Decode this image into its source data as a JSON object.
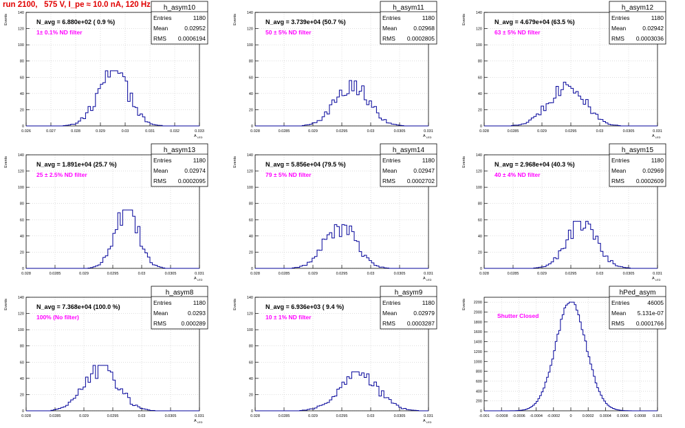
{
  "title": "run 2100,   575 V, I_pe ≈ 10.0 nA, 120 Hz",
  "colors": {
    "title": "#e00000",
    "annotation": "#ff00ff",
    "hist": "#000099",
    "grid": "#c8c8c8"
  },
  "chart_data": [
    {
      "type": "bar",
      "name": "h_asym10",
      "navg": "N_avg = 6.880e+02 ( 0.9 %)",
      "annotation": "1± 0.1% ND filter",
      "stats": {
        "entries": "1180",
        "mean": "0.02952",
        "rms": "0.0006194"
      },
      "ylabel": "Events",
      "xlabel": "A_LED",
      "xlim": [
        0.026,
        0.033
      ],
      "ylim": [
        0,
        140
      ],
      "xticks": [
        0.026,
        0.027,
        0.028,
        0.029,
        0.03,
        0.031,
        0.032,
        0.033
      ],
      "xticklabels": [
        "0.026",
        "0.027",
        "0.028",
        "0.029",
        "0.03",
        "0.031",
        "0.032",
        "0.033"
      ],
      "yticks": [
        0,
        20,
        40,
        60,
        80,
        100,
        120,
        140
      ],
      "mean": 0.02952,
      "rms": 0.0006194,
      "peak": 68,
      "bins": 70
    },
    {
      "type": "bar",
      "name": "h_asym11",
      "navg": "N_avg = 3.739e+04 (50.7 %)",
      "annotation": "50 ± 5% ND filter",
      "stats": {
        "entries": "1180",
        "mean": "0.02968",
        "rms": "0.0002805"
      },
      "ylabel": "Events",
      "xlabel": "A_LED",
      "xlim": [
        0.028,
        0.031
      ],
      "ylim": [
        0,
        140
      ],
      "xticks": [
        0.028,
        0.0285,
        0.029,
        0.0295,
        0.03,
        0.0305,
        0.031
      ],
      "xticklabels": [
        "0.028",
        "0.0285",
        "0.029",
        "0.0295",
        "0.03",
        "0.0305",
        "0.031"
      ],
      "yticks": [
        0,
        20,
        40,
        60,
        80,
        100,
        120,
        140
      ],
      "mean": 0.02968,
      "rms": 0.0002805,
      "peak": 56,
      "bins": 70
    },
    {
      "type": "bar",
      "name": "h_asym12",
      "navg": "N_avg = 4.679e+04 (63.5 %)",
      "annotation": "63 ± 5% ND filter",
      "stats": {
        "entries": "1180",
        "mean": "0.02942",
        "rms": "0.0003036"
      },
      "ylabel": "Events",
      "xlabel": "A_LED",
      "xlim": [
        0.028,
        0.031
      ],
      "ylim": [
        0,
        140
      ],
      "xticks": [
        0.028,
        0.0285,
        0.029,
        0.0295,
        0.03,
        0.0305,
        0.031
      ],
      "xticklabels": [
        "0.028",
        "0.0285",
        "0.029",
        "0.0295",
        "0.03",
        "0.0305",
        "0.031"
      ],
      "yticks": [
        0,
        20,
        40,
        60,
        80,
        100,
        120,
        140
      ],
      "mean": 0.02942,
      "rms": 0.0003036,
      "peak": 54,
      "bins": 70
    },
    {
      "type": "bar",
      "name": "h_asym13",
      "navg": "N_avg = 1.891e+04 (25.7 %)",
      "annotation": "25 ± 2.5% ND filter",
      "stats": {
        "entries": "1180",
        "mean": "0.02974",
        "rms": "0.0002095"
      },
      "ylabel": "Events",
      "xlabel": "A_LED",
      "xlim": [
        0.028,
        0.031
      ],
      "ylim": [
        0,
        140
      ],
      "xticks": [
        0.028,
        0.0285,
        0.029,
        0.0295,
        0.03,
        0.0305,
        0.031
      ],
      "xticklabels": [
        "0.028",
        "0.0285",
        "0.029",
        "0.0295",
        "0.03",
        "0.0305",
        "0.031"
      ],
      "yticks": [
        0,
        20,
        40,
        60,
        80,
        100,
        120,
        140
      ],
      "mean": 0.02974,
      "rms": 0.0002095,
      "peak": 72,
      "bins": 70
    },
    {
      "type": "bar",
      "name": "h_asym14",
      "navg": "N_avg = 5.856e+04 (79.5 %)",
      "annotation": "79 ± 5% ND filter",
      "stats": {
        "entries": "1180",
        "mean": "0.02947",
        "rms": "0.0002702"
      },
      "ylabel": "Events",
      "xlabel": "A_LED",
      "xlim": [
        0.028,
        0.031
      ],
      "ylim": [
        0,
        140
      ],
      "xticks": [
        0.028,
        0.0285,
        0.029,
        0.0295,
        0.03,
        0.0305,
        0.031
      ],
      "xticklabels": [
        "0.028",
        "0.0285",
        "0.029",
        "0.0295",
        "0.03",
        "0.0305",
        "0.031"
      ],
      "yticks": [
        0,
        20,
        40,
        60,
        80,
        100,
        120,
        140
      ],
      "mean": 0.02947,
      "rms": 0.0002702,
      "peak": 54,
      "bins": 70
    },
    {
      "type": "bar",
      "name": "h_asym15",
      "navg": "N_avg = 2.968e+04 (40.3 %)",
      "annotation": "40 ± 4% ND filter",
      "stats": {
        "entries": "1180",
        "mean": "0.02969",
        "rms": "0.0002609"
      },
      "ylabel": "Events",
      "xlabel": "A_LED",
      "xlim": [
        0.028,
        0.031
      ],
      "ylim": [
        0,
        140
      ],
      "xticks": [
        0.028,
        0.0285,
        0.029,
        0.0295,
        0.03,
        0.0305,
        0.031
      ],
      "xticklabels": [
        "0.028",
        "0.0285",
        "0.029",
        "0.0295",
        "0.03",
        "0.0305",
        "0.031"
      ],
      "yticks": [
        0,
        20,
        40,
        60,
        80,
        100,
        120,
        140
      ],
      "mean": 0.02969,
      "rms": 0.0002609,
      "peak": 58,
      "bins": 70
    },
    {
      "type": "bar",
      "name": "h_asym8",
      "navg": "N_avg = 7.368e+04 (100.0 %)",
      "annotation": "100% (No filter)",
      "stats": {
        "entries": "1180",
        "mean": "0.0293",
        "rms": "0.000289"
      },
      "ylabel": "Events",
      "xlabel": "A_LED",
      "xlim": [
        0.028,
        0.031
      ],
      "ylim": [
        0,
        140
      ],
      "xticks": [
        0.028,
        0.0285,
        0.029,
        0.0295,
        0.03,
        0.0305,
        0.031
      ],
      "xticklabels": [
        "0.028",
        "0.0285",
        "0.029",
        "0.0295",
        "0.03",
        "0.0305",
        "0.031"
      ],
      "yticks": [
        0,
        20,
        40,
        60,
        80,
        100,
        120,
        140
      ],
      "mean": 0.0293,
      "rms": 0.000289,
      "peak": 56,
      "bins": 70
    },
    {
      "type": "bar",
      "name": "h_asym9",
      "navg": "N_avg = 6.936e+03 ( 9.4 %)",
      "annotation": "10 ± 1% ND filter",
      "stats": {
        "entries": "1180",
        "mean": "0.02979",
        "rms": "0.0003287"
      },
      "ylabel": "Events",
      "xlabel": "A_LED",
      "xlim": [
        0.028,
        0.031
      ],
      "ylim": [
        0,
        140
      ],
      "xticks": [
        0.028,
        0.0285,
        0.029,
        0.0295,
        0.03,
        0.0305,
        0.031
      ],
      "xticklabels": [
        "0.028",
        "0.0285",
        "0.029",
        "0.0295",
        "0.03",
        "0.0305",
        "0.031"
      ],
      "yticks": [
        0,
        20,
        40,
        60,
        80,
        100,
        120,
        140
      ],
      "mean": 0.02979,
      "rms": 0.0003287,
      "peak": 48,
      "bins": 70
    },
    {
      "type": "bar",
      "name": "hPed_asym",
      "navg": "",
      "annotation": "Shutter Closed",
      "stats": {
        "entries": "46005",
        "mean": "5.131e-07",
        "rms": "0.0001766"
      },
      "ylabel": "Events",
      "xlabel": "",
      "xlim": [
        -0.001,
        0.001
      ],
      "ylim": [
        0,
        2300
      ],
      "xticks": [
        -0.001,
        -0.0008,
        -0.0006,
        -0.0004,
        -0.0002,
        0,
        0.0002,
        0.0004,
        0.0006,
        0.0008,
        0.001
      ],
      "xticklabels": [
        "-0.001",
        "-0.0008",
        "-0.0006",
        "-0.0004",
        "-0.0002",
        "0",
        "0.0002",
        "0.0004",
        "0.0006",
        "0.0008",
        "0.001"
      ],
      "yticks": [
        0,
        200,
        400,
        600,
        800,
        1000,
        1200,
        1400,
        1600,
        1800,
        2000,
        2200
      ],
      "mean": 5.131e-07,
      "rms": 0.0001766,
      "peak": 2200,
      "bins": 100
    }
  ]
}
